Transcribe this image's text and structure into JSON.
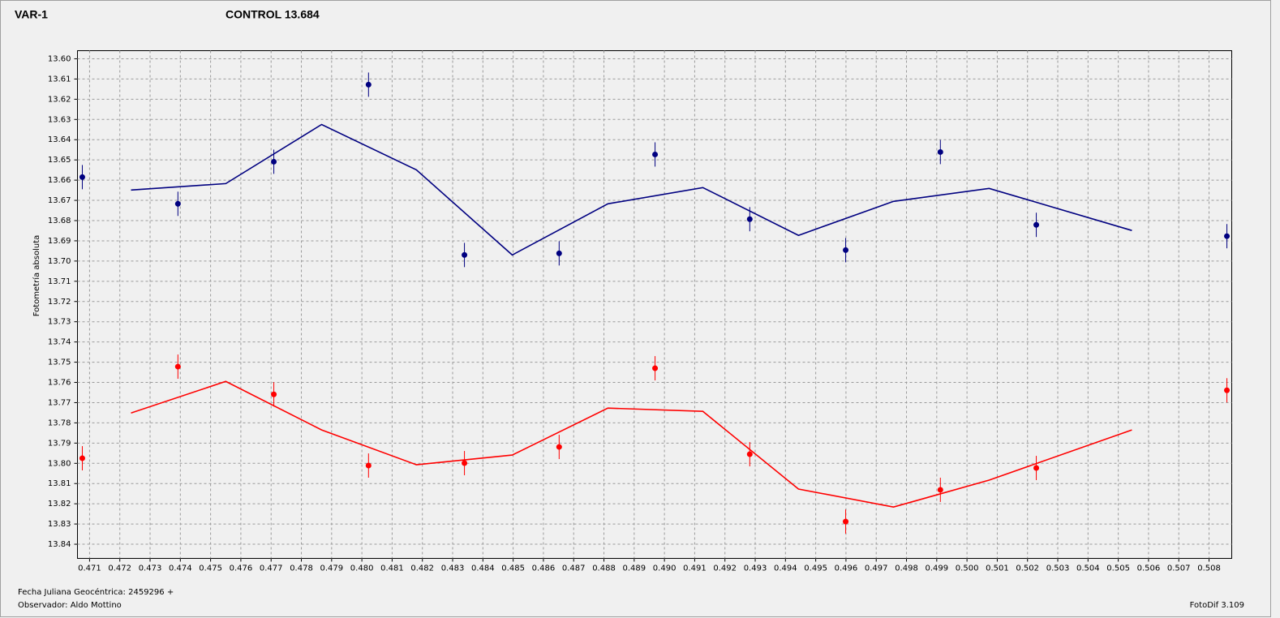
{
  "chart_data": {
    "type": "line",
    "xlabel": "Fecha Juliana Geocéntrica: 2459296 +",
    "ylabel": "Fotometría absoluta",
    "observer": "Observador: Aldo Mottino",
    "software": "FotoDif 3.109",
    "xlim": [
      0.4706,
      0.50875
    ],
    "ylim": [
      13.596,
      13.847
    ],
    "y_inverted": true,
    "grid": true,
    "xticks": [
      0.471,
      0.472,
      0.473,
      0.474,
      0.475,
      0.476,
      0.477,
      0.478,
      0.479,
      {
        "value": 0.48,
        "label": "0.480"
      },
      0.481,
      0.482,
      0.483,
      0.484,
      0.485,
      0.486,
      0.487,
      0.488,
      0.489,
      {
        "value": 0.49,
        "label": "0.490"
      },
      0.491,
      0.492,
      0.493,
      0.494,
      0.495,
      0.496,
      0.497,
      0.498,
      0.499,
      {
        "value": 0.5,
        "label": "0.500"
      },
      0.501,
      0.502,
      0.503,
      0.504,
      0.505,
      0.506,
      0.507,
      0.508
    ],
    "yticks": [
      {
        "value": 13.6,
        "label": "13.60"
      },
      13.61,
      13.62,
      13.63,
      13.64,
      13.65,
      13.66,
      13.67,
      13.68,
      13.69,
      {
        "value": 13.7,
        "label": "13.70"
      },
      13.71,
      13.72,
      13.73,
      13.74,
      13.75,
      13.76,
      13.77,
      13.78,
      13.79,
      {
        "value": 13.8,
        "label": "13.80"
      },
      13.81,
      13.82,
      13.83,
      13.84
    ],
    "series": [
      {
        "name": "VAR-1",
        "color": "#ff0000",
        "mode": "markers",
        "x": [
          0.47076,
          0.47392,
          0.47709,
          0.48022,
          0.48339,
          0.48652,
          0.48969,
          0.49282,
          0.49599,
          0.49912,
          0.50229,
          0.50859
        ],
        "values": [
          13.7975,
          13.7522,
          13.7659,
          13.8011,
          13.7999,
          13.7919,
          13.753,
          13.7955,
          13.8288,
          13.8131,
          13.8023,
          13.7639
        ],
        "errors": [
          0.006,
          0.006,
          0.006,
          0.006,
          0.006,
          0.006,
          0.006,
          0.006,
          0.006,
          0.006,
          0.006,
          0.006
        ]
      },
      {
        "color": "#ff0000",
        "mode": "lines",
        "x": [
          0.47237,
          0.4755,
          0.47867,
          0.4818,
          0.48497,
          0.48813,
          0.49127,
          0.49443,
          0.49757,
          0.50073,
          0.50545
        ],
        "values": [
          13.7751,
          13.7595,
          13.7835,
          13.8007,
          13.7959,
          13.7727,
          13.7743,
          13.8127,
          13.8216,
          13.8083,
          13.7835
        ]
      },
      {
        "name": "CONTROL 13.684",
        "color": "#000080",
        "mode": "markers",
        "x": [
          0.47076,
          0.47392,
          0.47709,
          0.48022,
          0.48339,
          0.48652,
          0.48969,
          0.49282,
          0.49599,
          0.49912,
          0.50229,
          0.50859
        ],
        "values": [
          13.6585,
          13.6717,
          13.6509,
          13.6128,
          13.697,
          13.6962,
          13.6473,
          13.6793,
          13.6946,
          13.6461,
          13.6821,
          13.6877
        ],
        "errors": [
          0.006,
          0.006,
          0.006,
          0.006,
          0.006,
          0.006,
          0.006,
          0.006,
          0.006,
          0.006,
          0.006,
          0.006
        ]
      },
      {
        "color": "#000080",
        "mode": "lines",
        "x": [
          0.47237,
          0.4755,
          0.47867,
          0.4818,
          0.48497,
          0.48813,
          0.49127,
          0.49443,
          0.49757,
          0.50073,
          0.50545
        ],
        "values": [
          13.6649,
          13.6617,
          13.6325,
          13.6549,
          13.697,
          13.6717,
          13.6637,
          13.6873,
          13.6705,
          13.6641,
          13.6849
        ]
      }
    ]
  }
}
